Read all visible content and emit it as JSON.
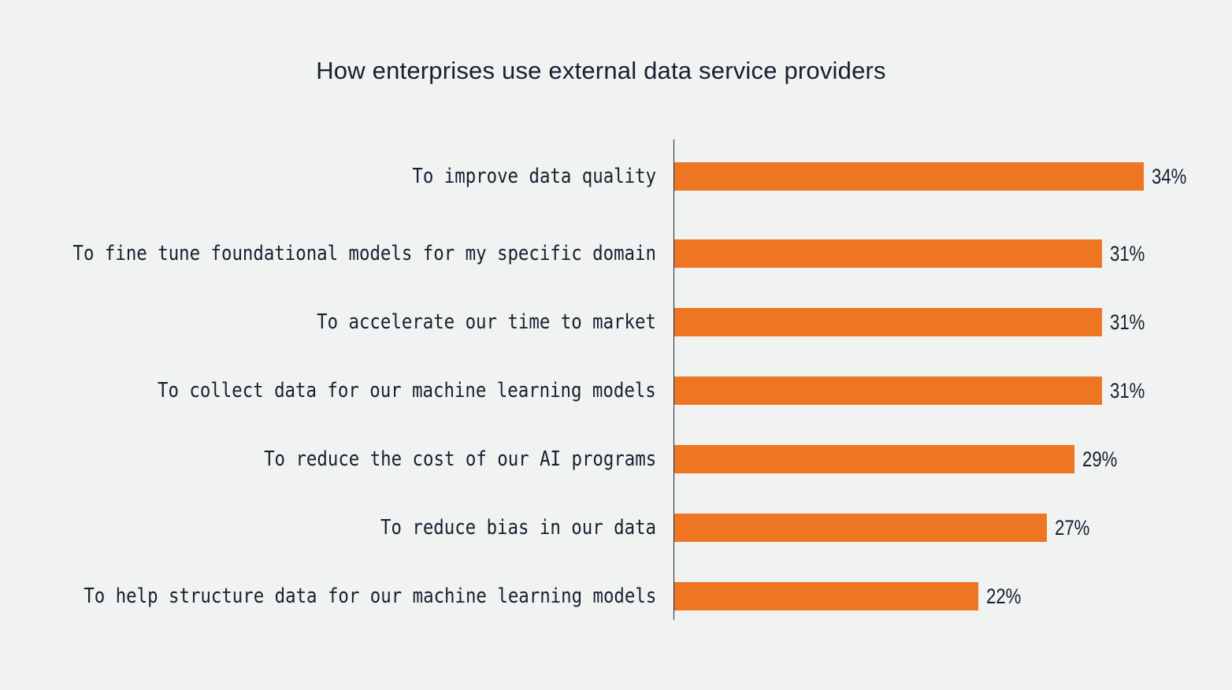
{
  "chart": {
    "title": "How enterprises use external data service providers",
    "colors": {
      "bar": "#ee7623",
      "text": "#14212e",
      "background": "#f1f2f2",
      "axis": "#1b2631"
    },
    "rows": [
      {
        "label": "To improve data quality",
        "value": 34,
        "value_label": "34%"
      },
      {
        "label": "To fine tune foundational models for my specific domain",
        "value": 31,
        "value_label": "31%"
      },
      {
        "label": "To accelerate our time to market",
        "value": 31,
        "value_label": "31%"
      },
      {
        "label": "To collect data for our machine learning models",
        "value": 31,
        "value_label": "31%"
      },
      {
        "label": "To reduce the cost of our AI programs",
        "value": 29,
        "value_label": "29%"
      },
      {
        "label": "To reduce bias in our data",
        "value": 27,
        "value_label": "27%"
      },
      {
        "label": "To help structure data for our machine learning models",
        "value": 22,
        "value_label": "22%"
      }
    ]
  },
  "chart_data": {
    "type": "bar",
    "orientation": "horizontal",
    "title": "How enterprises use external data service providers",
    "categories": [
      "To improve data quality",
      "To fine tune foundational models for my specific domain",
      "To accelerate our time to market",
      "To collect data for our machine learning models",
      "To reduce the cost of our AI programs",
      "To reduce bias in our data",
      "To help structure data for our machine learning models"
    ],
    "values": [
      34,
      31,
      31,
      31,
      29,
      27,
      22
    ],
    "value_labels": [
      "34%",
      "31%",
      "31%",
      "31%",
      "29%",
      "27%",
      "22%"
    ],
    "unit": "%",
    "xlabel": "",
    "ylabel": "",
    "grid": false,
    "legend": null
  }
}
